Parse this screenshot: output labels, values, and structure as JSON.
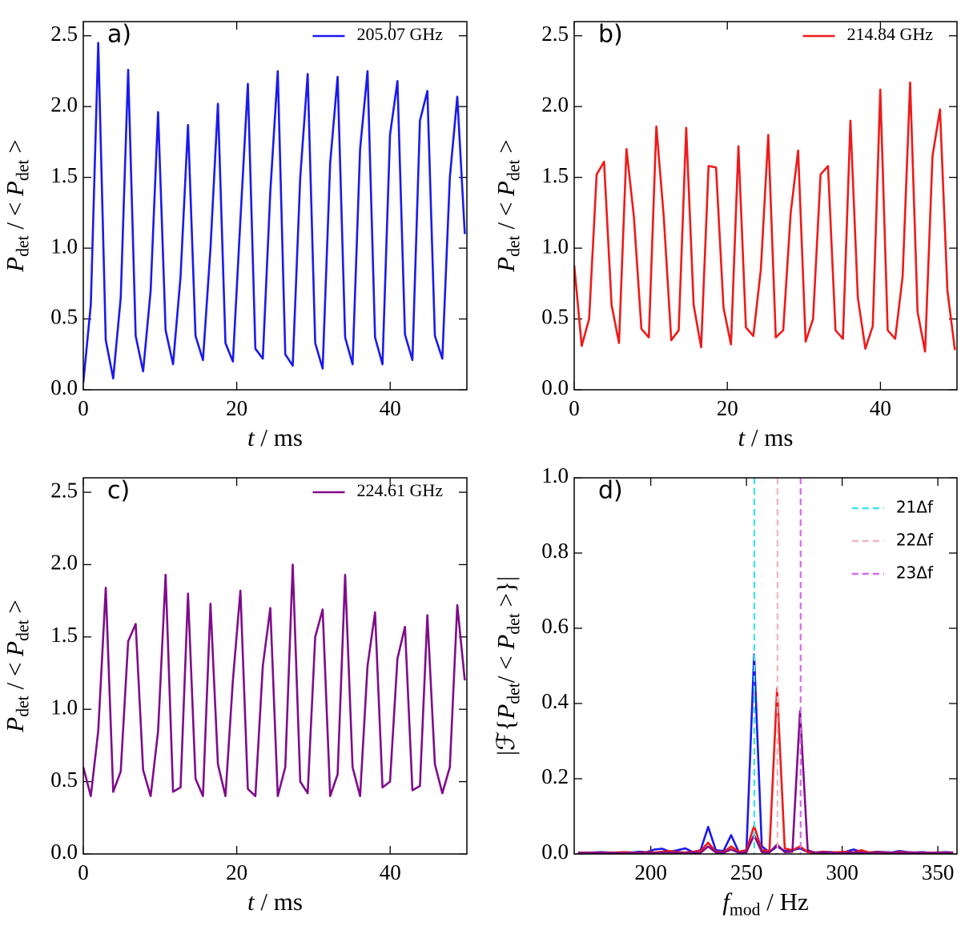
{
  "chart_data": [
    {
      "type": "line",
      "title": "a)",
      "xlabel": [
        {
          "text": "t",
          "style": "italic"
        },
        {
          "text": " / ms",
          "style": "normal"
        }
      ],
      "ylabel": [
        {
          "text": "P",
          "style": "italic"
        },
        {
          "text": "det",
          "style": "sub"
        },
        {
          "text": " / < ",
          "style": "normal"
        },
        {
          "text": "P",
          "style": "italic"
        },
        {
          "text": "det",
          "style": "sub"
        },
        {
          "text": " >",
          "style": "normal"
        }
      ],
      "x": [
        0,
        0.98,
        1.95,
        2.93,
        3.9,
        4.88,
        5.85,
        6.83,
        7.8,
        8.78,
        9.75,
        10.73,
        11.7,
        12.68,
        13.65,
        14.63,
        15.6,
        16.58,
        17.55,
        18.53,
        19.5,
        20.48,
        21.45,
        22.43,
        23.4,
        24.38,
        25.35,
        26.33,
        27.3,
        28.28,
        29.25,
        30.23,
        31.2,
        32.18,
        33.15,
        34.13,
        35.1,
        36.08,
        37.05,
        38.03,
        39,
        39.98,
        40.95,
        41.93,
        42.9,
        43.88,
        44.85,
        45.83,
        46.8,
        47.78,
        48.75,
        49.73
      ],
      "series": [
        {
          "name": "205.07 GHz",
          "color": "#1a1aee",
          "values": [
            0.05,
            0.6,
            2.45,
            0.35,
            0.08,
            0.65,
            2.26,
            0.38,
            0.13,
            0.7,
            1.96,
            0.42,
            0.18,
            0.8,
            1.87,
            0.38,
            0.21,
            1.0,
            2.02,
            0.33,
            0.2,
            1.2,
            2.16,
            0.29,
            0.22,
            1.4,
            2.25,
            0.25,
            0.17,
            1.5,
            2.23,
            0.33,
            0.15,
            1.6,
            2.21,
            0.37,
            0.18,
            1.7,
            2.25,
            0.37,
            0.18,
            1.8,
            2.18,
            0.39,
            0.21,
            1.9,
            2.11,
            0.38,
            0.22,
            1.5,
            2.07,
            1.1
          ]
        }
      ],
      "xlim": [
        0,
        50
      ],
      "ylim": [
        0,
        2.6
      ],
      "xticks": [
        0,
        20,
        40
      ],
      "yticks": [
        {
          "value": 0,
          "label": "0.0"
        },
        0.5,
        {
          "value": 1,
          "label": "1.0"
        },
        1.5,
        {
          "value": 2,
          "label": "2.0"
        },
        2.5
      ],
      "legend": "upper right"
    },
    {
      "type": "line",
      "title": "b)",
      "xlabel": [
        {
          "text": "t",
          "style": "italic"
        },
        {
          "text": " / ms",
          "style": "normal"
        }
      ],
      "ylabel": [
        {
          "text": "P",
          "style": "italic"
        },
        {
          "text": "det",
          "style": "sub"
        },
        {
          "text": " / < ",
          "style": "normal"
        },
        {
          "text": "P",
          "style": "italic"
        },
        {
          "text": "det",
          "style": "sub"
        },
        {
          "text": " >",
          "style": "normal"
        }
      ],
      "x": [
        0,
        0.98,
        1.95,
        2.93,
        3.9,
        4.88,
        5.85,
        6.83,
        7.8,
        8.78,
        9.75,
        10.73,
        11.7,
        12.68,
        13.65,
        14.63,
        15.6,
        16.58,
        17.55,
        18.53,
        19.5,
        20.48,
        21.45,
        22.43,
        23.4,
        24.38,
        25.35,
        26.33,
        27.3,
        28.28,
        29.25,
        30.23,
        31.2,
        32.18,
        33.15,
        34.13,
        35.1,
        36.08,
        37.05,
        38.03,
        39,
        39.98,
        40.95,
        41.93,
        42.9,
        43.88,
        44.85,
        45.83,
        46.8,
        47.78,
        48.75,
        49.73
      ],
      "series": [
        {
          "name": "214.84 GHz",
          "color": "#ee1a1a",
          "values": [
            0.88,
            0.31,
            0.5,
            1.52,
            1.61,
            0.6,
            0.33,
            1.7,
            1.22,
            0.43,
            0.37,
            1.86,
            1.22,
            0.35,
            0.42,
            1.85,
            0.6,
            0.3,
            1.58,
            1.57,
            0.58,
            0.32,
            1.72,
            0.44,
            0.38,
            0.85,
            1.8,
            0.37,
            0.42,
            1.25,
            1.69,
            0.34,
            0.5,
            1.52,
            1.58,
            0.42,
            0.36,
            1.9,
            0.65,
            0.29,
            0.45,
            2.12,
            0.42,
            0.36,
            0.8,
            2.17,
            0.55,
            0.27,
            1.65,
            1.98,
            0.7,
            0.28
          ]
        }
      ],
      "xlim": [
        0,
        50
      ],
      "ylim": [
        0,
        2.6
      ],
      "xticks": [
        0,
        20,
        40
      ],
      "yticks": [
        {
          "value": 0,
          "label": "0.0"
        },
        0.5,
        {
          "value": 1,
          "label": "1.0"
        },
        1.5,
        {
          "value": 2,
          "label": "2.0"
        },
        2.5
      ],
      "legend": "upper right"
    },
    {
      "type": "line",
      "title": "c)",
      "xlabel": [
        {
          "text": "t",
          "style": "italic"
        },
        {
          "text": " / ms",
          "style": "normal"
        }
      ],
      "ylabel": [
        {
          "text": "P",
          "style": "italic"
        },
        {
          "text": "det",
          "style": "sub"
        },
        {
          "text": " / < ",
          "style": "normal"
        },
        {
          "text": "P",
          "style": "italic"
        },
        {
          "text": "det",
          "style": "sub"
        },
        {
          "text": " >",
          "style": "normal"
        }
      ],
      "x": [
        0,
        0.98,
        1.95,
        2.93,
        3.9,
        4.88,
        5.85,
        6.83,
        7.8,
        8.78,
        9.75,
        10.73,
        11.7,
        12.68,
        13.65,
        14.63,
        15.6,
        16.58,
        17.55,
        18.53,
        19.5,
        20.48,
        21.45,
        22.43,
        23.4,
        24.38,
        25.35,
        26.33,
        27.3,
        28.28,
        29.25,
        30.23,
        31.2,
        32.18,
        33.15,
        34.13,
        35.1,
        36.08,
        37.05,
        38.03,
        39,
        39.98,
        40.95,
        41.93,
        42.9,
        43.88,
        44.85,
        45.83,
        46.8,
        47.78,
        48.75,
        49.73
      ],
      "series": [
        {
          "name": "224.61 GHz",
          "color": "#7f0c8a",
          "values": [
            0.6,
            0.4,
            0.85,
            1.84,
            0.43,
            0.57,
            1.47,
            1.59,
            0.58,
            0.4,
            0.85,
            1.93,
            0.43,
            0.46,
            1.8,
            0.52,
            0.4,
            1.73,
            0.62,
            0.4,
            1.2,
            1.82,
            0.45,
            0.4,
            1.3,
            1.7,
            0.4,
            0.6,
            2.0,
            0.5,
            0.42,
            1.5,
            1.69,
            0.4,
            0.55,
            1.93,
            0.6,
            0.4,
            1.3,
            1.67,
            0.46,
            0.5,
            1.35,
            1.57,
            0.44,
            0.47,
            1.65,
            0.62,
            0.42,
            0.6,
            1.72,
            1.2
          ]
        }
      ],
      "xlim": [
        0,
        50
      ],
      "ylim": [
        0,
        2.6
      ],
      "xticks": [
        0,
        20,
        40
      ],
      "yticks": [
        {
          "value": 0,
          "label": "0.0"
        },
        0.5,
        {
          "value": 1,
          "label": "1.0"
        },
        1.5,
        {
          "value": 2,
          "label": "2.0"
        },
        2.5
      ],
      "legend": "upper right"
    },
    {
      "type": "line",
      "title": "d)",
      "xlabel": [
        {
          "text": "f",
          "style": "italic"
        },
        {
          "text": "mod",
          "style": "sub"
        },
        {
          "text": " / Hz",
          "style": "normal"
        }
      ],
      "ylabel": [
        {
          "text": "|ℱ{",
          "style": "normal"
        },
        {
          "text": "P",
          "style": "italic"
        },
        {
          "text": "det",
          "style": "sub"
        },
        {
          "text": "/ < ",
          "style": "normal"
        },
        {
          "text": "P",
          "style": "italic"
        },
        {
          "text": "det",
          "style": "sub"
        },
        {
          "text": " >}|",
          "style": "normal"
        }
      ],
      "x": [
        162,
        166,
        170,
        174,
        178,
        182,
        186,
        190,
        194,
        198,
        202,
        206,
        210,
        214,
        218,
        222,
        226,
        230,
        234,
        238,
        242,
        246,
        250,
        254,
        258,
        262,
        266,
        270,
        274,
        278,
        282,
        286,
        290,
        294,
        298,
        302,
        306,
        310,
        314,
        318,
        322,
        326,
        330,
        334,
        338,
        342,
        346,
        350,
        354,
        358
      ],
      "series": [
        {
          "color": "#1a1aee",
          "values": [
            0.004,
            0.003,
            0.004,
            0.005,
            0.004,
            0.003,
            0.005,
            0.004,
            0.006,
            0.005,
            0.012,
            0.014,
            0.006,
            0.01,
            0.015,
            0.005,
            0.01,
            0.072,
            0.01,
            0.008,
            0.05,
            0.005,
            0.01,
            0.53,
            0.02,
            0.005,
            0.02,
            0.008,
            0.01,
            0.015,
            0.005,
            0.004,
            0.006,
            0.005,
            0.004,
            0.006,
            0.012,
            0.005,
            0.004,
            0.006,
            0.005,
            0.004,
            0.008,
            0.005,
            0.004,
            0.005,
            0.003,
            0.004,
            0.005,
            0.004
          ]
        },
        {
          "color": "#ee1a1a",
          "values": [
            0.003,
            0.004,
            0.003,
            0.004,
            0.003,
            0.004,
            0.005,
            0.004,
            0.003,
            0.005,
            0.004,
            0.006,
            0.008,
            0.005,
            0.004,
            0.006,
            0.008,
            0.03,
            0.006,
            0.005,
            0.02,
            0.006,
            0.01,
            0.075,
            0.01,
            0.008,
            0.44,
            0.015,
            0.01,
            0.02,
            0.005,
            0.004,
            0.006,
            0.004,
            0.005,
            0.006,
            0.004,
            0.01,
            0.004,
            0.005,
            0.004,
            0.003,
            0.005,
            0.004,
            0.003,
            0.004,
            0.003,
            0.004,
            0.003,
            0.004
          ]
        },
        {
          "color": "#7f0c8a",
          "values": [
            0.002,
            0.003,
            0.002,
            0.003,
            0.002,
            0.003,
            0.002,
            0.003,
            0.002,
            0.003,
            0.002,
            0.003,
            0.004,
            0.003,
            0.002,
            0.004,
            0.003,
            0.02,
            0.004,
            0.003,
            0.012,
            0.003,
            0.005,
            0.05,
            0.005,
            0.004,
            0.025,
            0.005,
            0.006,
            0.38,
            0.01,
            0.003,
            0.004,
            0.003,
            0.002,
            0.003,
            0.004,
            0.003,
            0.002,
            0.003,
            0.002,
            0.003,
            0.002,
            0.003,
            0.002,
            0.003,
            0.002,
            0.003,
            0.002,
            0.003
          ]
        }
      ],
      "vlines": [
        {
          "name": "21Δf",
          "color": "#3ae4ee",
          "x": 254.1
        },
        {
          "name": "22Δf",
          "color": "#f4b3bb",
          "x": 266.2
        },
        {
          "name": "23Δf",
          "color": "#d56ae8",
          "x": 278.3
        }
      ],
      "xlim": [
        160,
        360
      ],
      "ylim": [
        0,
        1
      ],
      "xticks": [
        200,
        250,
        300,
        350
      ],
      "yticks": [
        {
          "value": 0,
          "label": "0.0"
        },
        0.2,
        0.4,
        0.6,
        0.8,
        {
          "value": 1,
          "label": "1.0"
        }
      ],
      "legend": "upper right"
    }
  ]
}
